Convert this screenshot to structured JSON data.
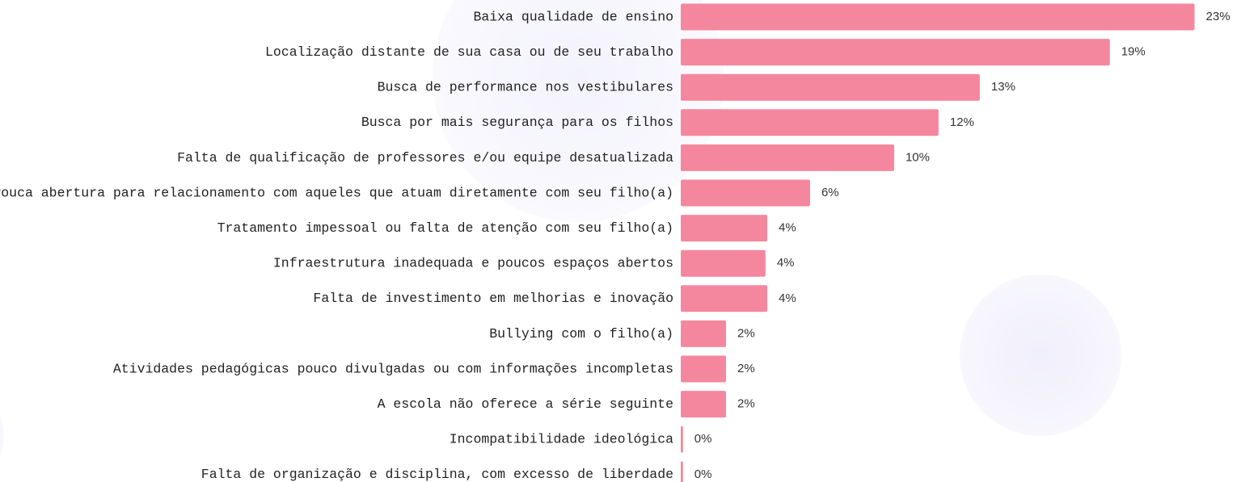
{
  "chart_data": {
    "type": "barh",
    "categories": [
      "Baixa qualidade de ensino",
      "Localização distante de sua casa ou de seu trabalho",
      "Busca de performance nos vestibulares",
      "Busca por mais segurança para os filhos",
      "Falta de qualificação de professores e/ou equipe desatualizada",
      "Pouca abertura para relacionamento com aqueles que atuam diretamente com seu filho(a)",
      "Tratamento impessoal ou falta de atenção com seu filho(a)",
      "Infraestrutura inadequada e poucos espaços abertos",
      "Falta de investimento em melhorias e inovação",
      "Bullying com o filho(a)",
      "Atividades pedagógicas pouco divulgadas ou com informações incompletas",
      "A escola não oferece a série seguinte",
      "Incompatibilidade ideológica",
      "Falta de organização e disciplina, com excesso de liberdade"
    ],
    "values": [
      23.04,
      19.24,
      13.41,
      11.56,
      9.57,
      5.8,
      3.88,
      3.8,
      3.88,
      2.03,
      2.03,
      2.03,
      0.1,
      0.1
    ],
    "value_labels": [
      "23%",
      "19%",
      "13%",
      "12%",
      "10%",
      "6%",
      "4%",
      "4%",
      "4%",
      "2%",
      "2%",
      "2%",
      "0%",
      "0%"
    ],
    "color": "#f4879d",
    "xlim": [
      0,
      24
    ]
  }
}
